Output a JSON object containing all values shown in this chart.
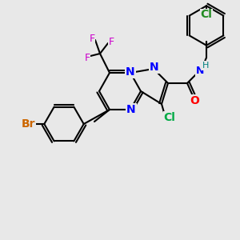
{
  "bg_color": "#e8e8e8",
  "bond_color": "#000000",
  "colors": {
    "N": "#0000ff",
    "O": "#ff0000",
    "Cl_green": "#00aa44",
    "Cl_label": "#228B22",
    "Br": "#cc6600",
    "F": "#cc00cc",
    "H": "#008080",
    "C": "#000000"
  },
  "font_size": 9,
  "bond_lw": 1.5
}
